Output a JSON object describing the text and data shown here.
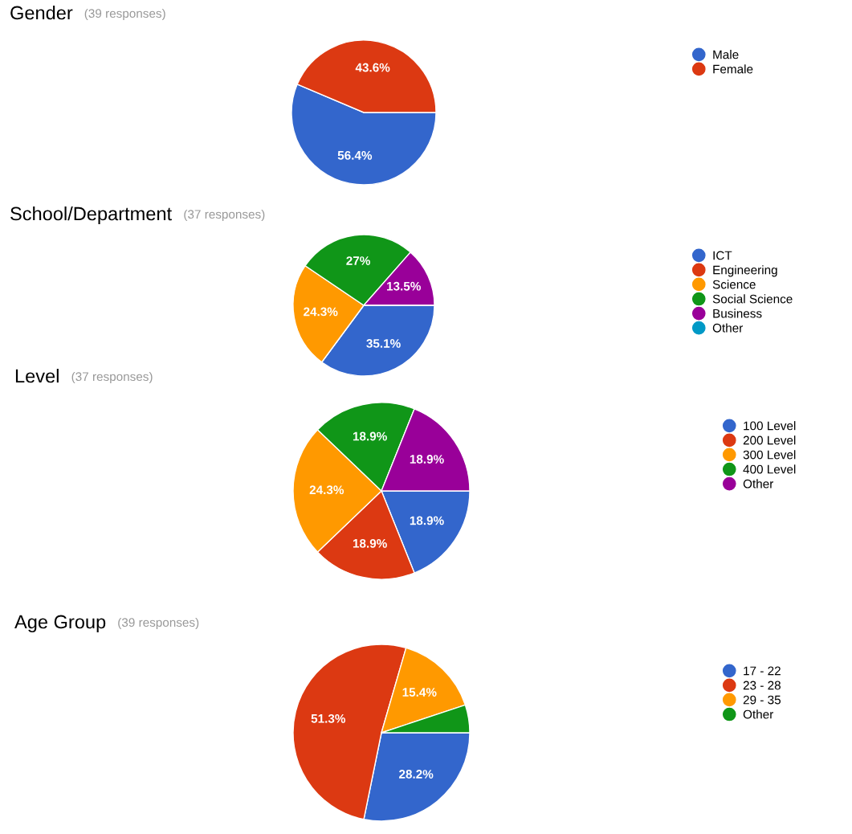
{
  "chart_data": [
    {
      "type": "pie",
      "title": "Gender",
      "subtitle": "(39 responses)",
      "categories": [
        "Male",
        "Female"
      ],
      "values": [
        56.4,
        43.6
      ],
      "colors": [
        "#3366cc",
        "#dc3912"
      ],
      "value_labels": [
        "56.4%",
        "43.6%"
      ],
      "legend": "right"
    },
    {
      "type": "pie",
      "title": "School/Department",
      "subtitle": "(37 responses)",
      "categories": [
        "ICT",
        "Engineering",
        "Science",
        "Social Science",
        "Business",
        "Other"
      ],
      "values": [
        35.1,
        0,
        24.3,
        27,
        13.5,
        0
      ],
      "colors": [
        "#3366cc",
        "#dc3912",
        "#ff9900",
        "#109618",
        "#990099",
        "#0099c6"
      ],
      "value_labels": [
        "35.1%",
        null,
        "24.3%",
        "27%",
        "13.5%",
        null
      ],
      "legend": "right"
    },
    {
      "type": "pie",
      "title": "Level",
      "subtitle": "(37 responses)",
      "categories": [
        "100 Level",
        "200 Level",
        "300 Level",
        "400 Level",
        "Other"
      ],
      "values": [
        18.9,
        18.9,
        24.3,
        18.9,
        18.9
      ],
      "colors": [
        "#3366cc",
        "#dc3912",
        "#ff9900",
        "#109618",
        "#990099"
      ],
      "value_labels": [
        "18.9%",
        "18.9%",
        "24.3%",
        "18.9%",
        "18.9%"
      ],
      "legend": "right"
    },
    {
      "type": "pie",
      "title": "Age Group",
      "subtitle": "(39 responses)",
      "categories": [
        "17 - 22",
        "23 - 28",
        "29 - 35",
        "Other"
      ],
      "values": [
        28.2,
        51.3,
        15.4,
        5.1
      ],
      "colors": [
        "#3366cc",
        "#dc3912",
        "#ff9900",
        "#109618"
      ],
      "value_labels": [
        "28.2%",
        "51.3%",
        "15.4%",
        null
      ],
      "legend": "right"
    }
  ]
}
